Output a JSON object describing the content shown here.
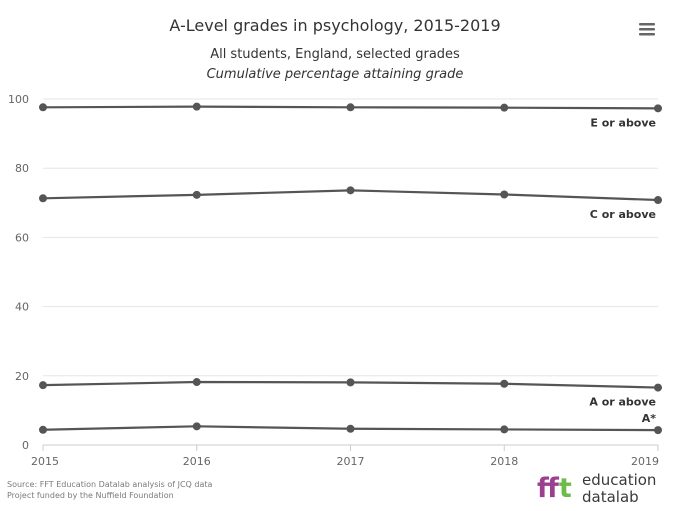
{
  "chart_data": {
    "type": "line",
    "title": "A-Level grades in psychology, 2015-2019",
    "subtitle": "All students, England, selected grades",
    "subtitle2": "Cumulative percentage attaining grade",
    "x": [
      2015,
      2016,
      2017,
      2018,
      2019
    ],
    "x_tick_labels": [
      "2015",
      "2016",
      "2017",
      "2018",
      "2019"
    ],
    "y_tick_labels": [
      "0",
      "20",
      "40",
      "60",
      "80",
      "100"
    ],
    "ylim": [
      0,
      100
    ],
    "grid": true,
    "series": [
      {
        "name": "E or above",
        "values": [
          97.6,
          97.8,
          97.6,
          97.5,
          97.3
        ]
      },
      {
        "name": "C or above",
        "values": [
          71.3,
          72.3,
          73.6,
          72.4,
          70.8
        ]
      },
      {
        "name": "A or above",
        "values": [
          17.3,
          18.2,
          18.1,
          17.7,
          16.6
        ]
      },
      {
        "name": "A*",
        "values": [
          4.4,
          5.4,
          4.7,
          4.5,
          4.3
        ]
      }
    ],
    "line_color": "#555555"
  },
  "source_line1": "Source: FFT Education Datalab analysis of JCQ data",
  "source_line2": "Project funded by the Nuffield Foundation",
  "logo": {
    "mark": "fft",
    "word1": "education",
    "word2": "datalab",
    "colors": [
      "#9b3f8f",
      "#c6418a",
      "#6dbb4b"
    ]
  },
  "menu_icon": "hamburger-menu-icon"
}
